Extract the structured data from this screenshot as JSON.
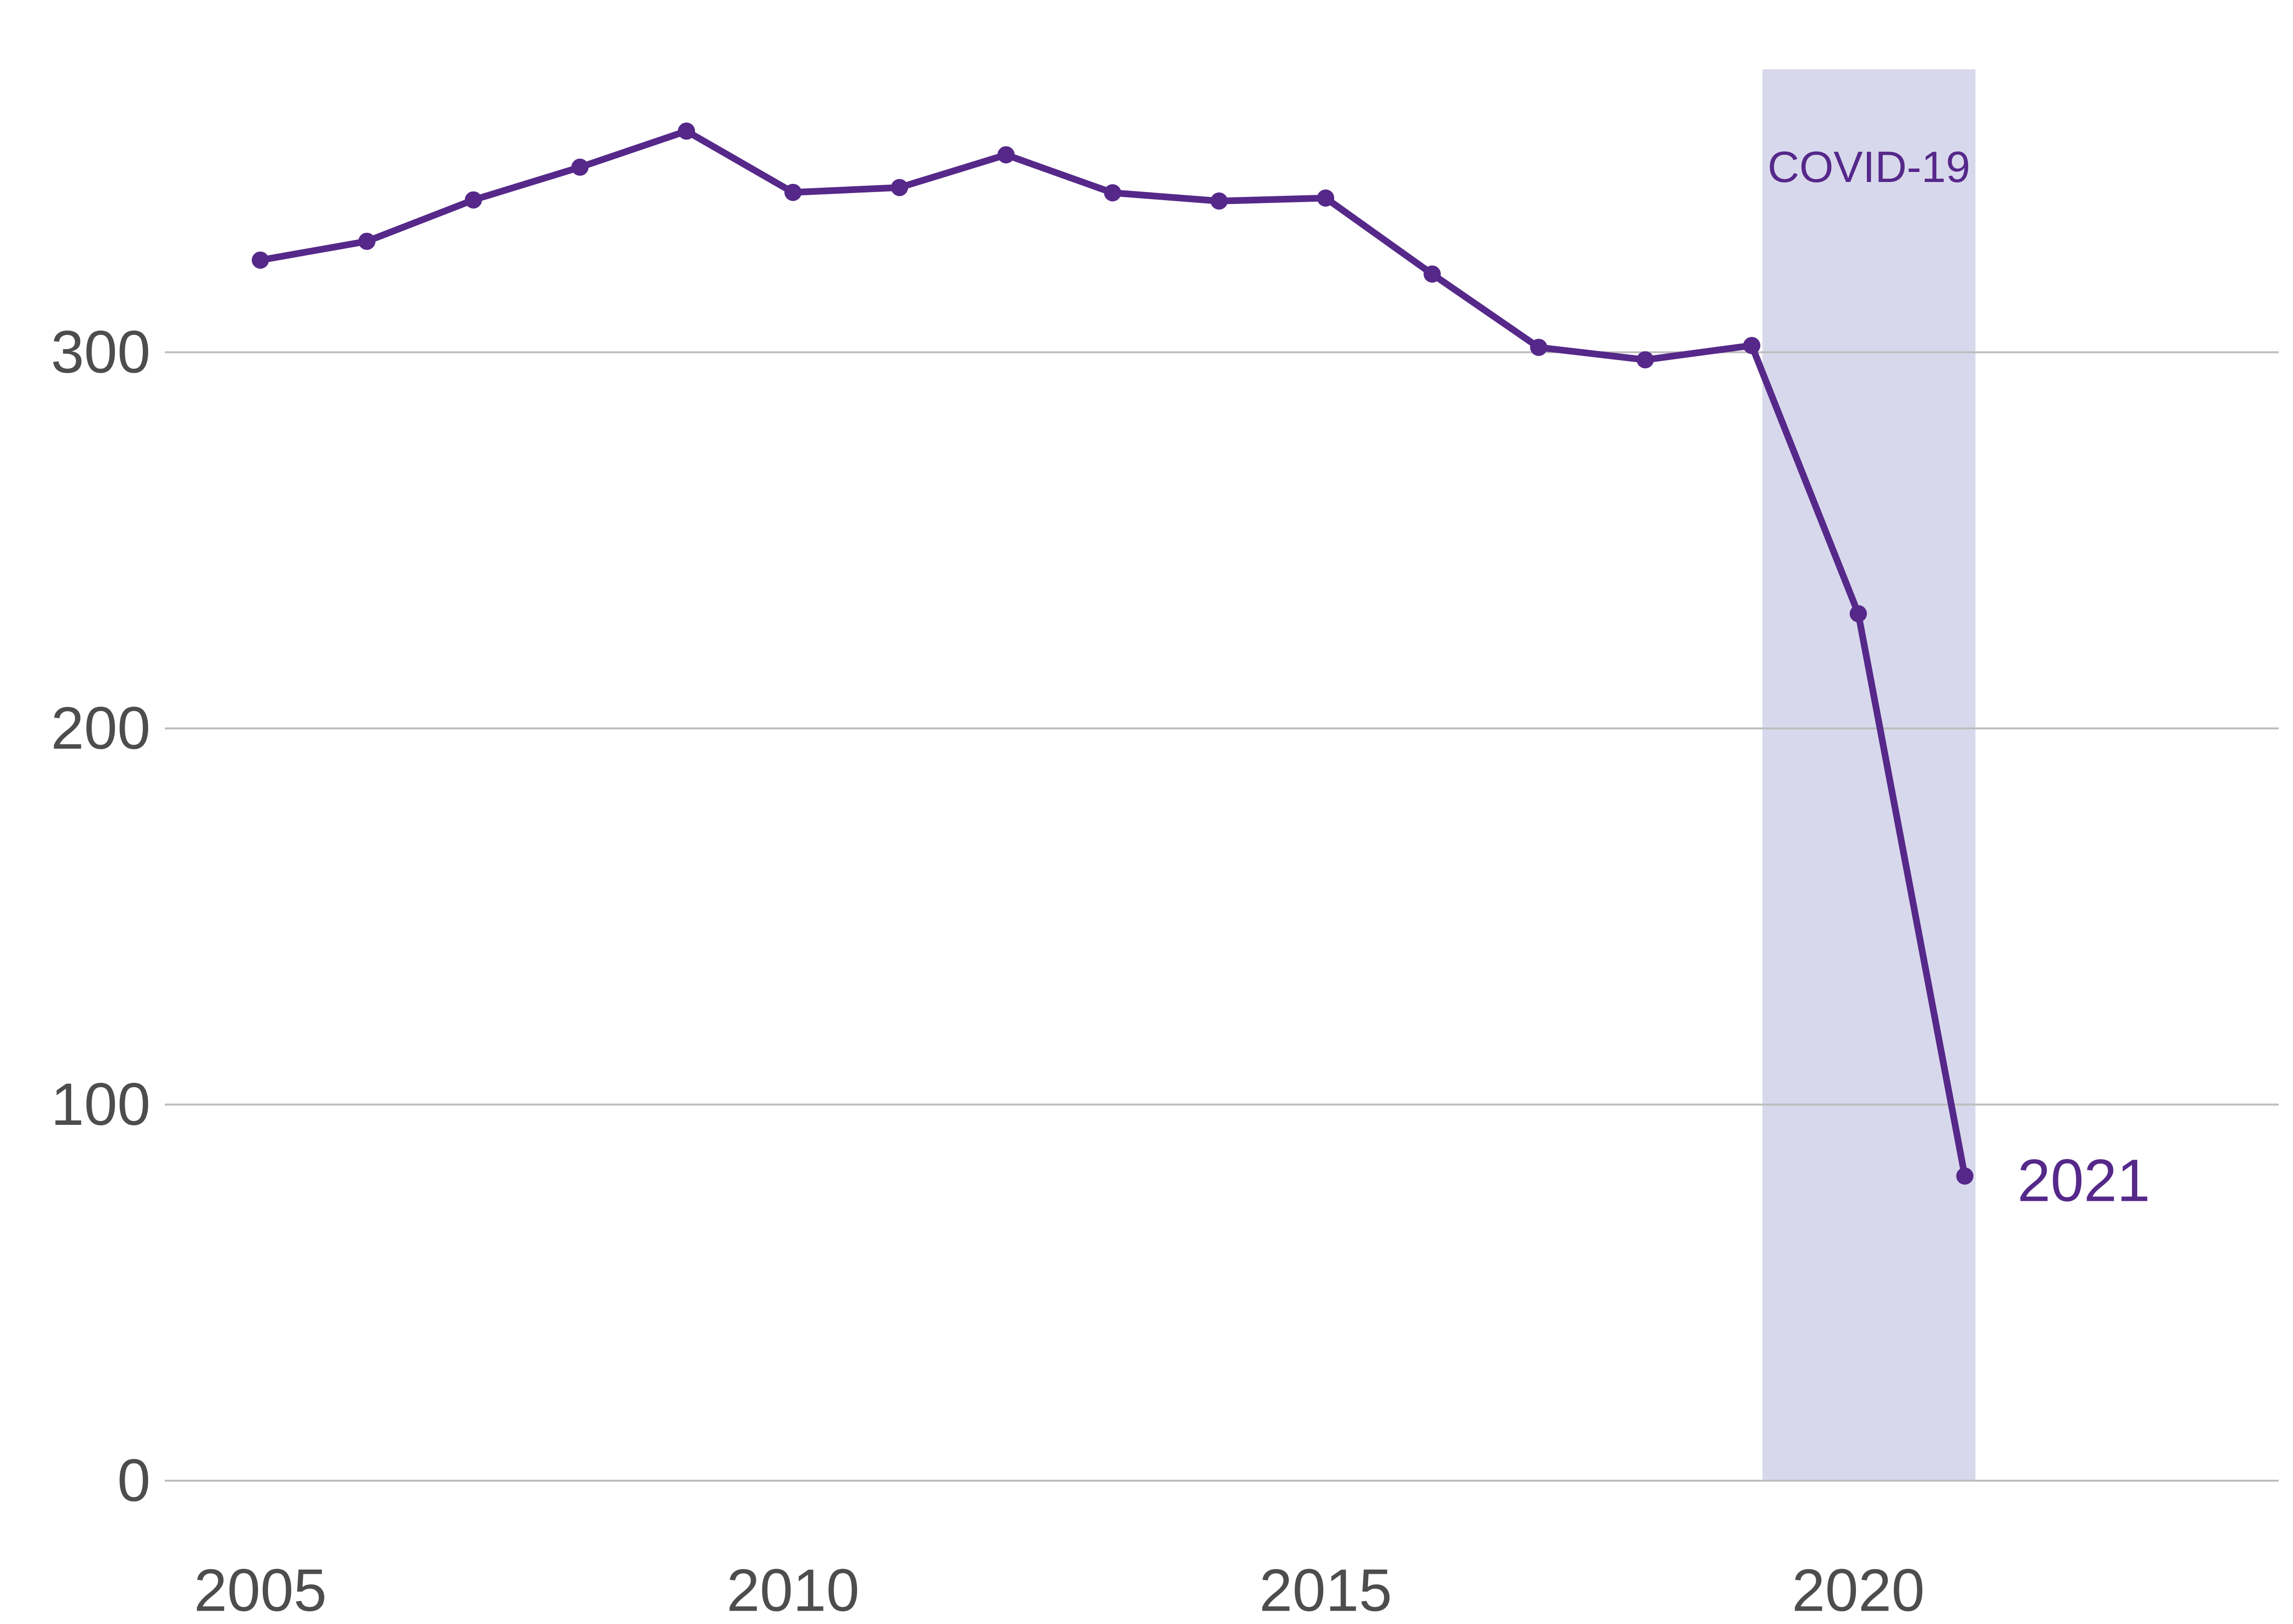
{
  "chart_data": {
    "type": "line",
    "title": "",
    "xlabel": "",
    "ylabel": "",
    "xlim": [
      2004.2,
      2024
    ],
    "ylim": [
      0,
      375
    ],
    "x_ticks": [
      2005,
      2010,
      2015,
      2020
    ],
    "y_ticks": [
      0,
      100,
      200,
      300
    ],
    "grid": "horizontal",
    "colors": {
      "line": "#56288A",
      "band_fill": "#D8D8EC",
      "band_label": "#56288A",
      "end_label": "#56288A",
      "grid": "#bdbdbd",
      "tick_text": "#4d4d4d"
    },
    "highlight_band": {
      "x_start": 2019.1,
      "x_end": 2021.1,
      "label": "COVID-19"
    },
    "end_label": "2021",
    "series": [
      {
        "x": [
          2005,
          2006,
          2007,
          2008,
          2009,
          2010,
          2011,
          2012,
          2013,
          2014,
          2015,
          2016,
          2017,
          2018,
          2019,
          2020,
          2021
        ],
        "values": [
          324.5,
          329.5,
          340.5,
          349.2,
          358.8,
          342.5,
          343.8,
          352.5,
          342.4,
          340.2,
          341.0,
          320.8,
          301.3,
          298.0,
          301.8,
          230.5,
          81.0
        ]
      }
    ]
  }
}
